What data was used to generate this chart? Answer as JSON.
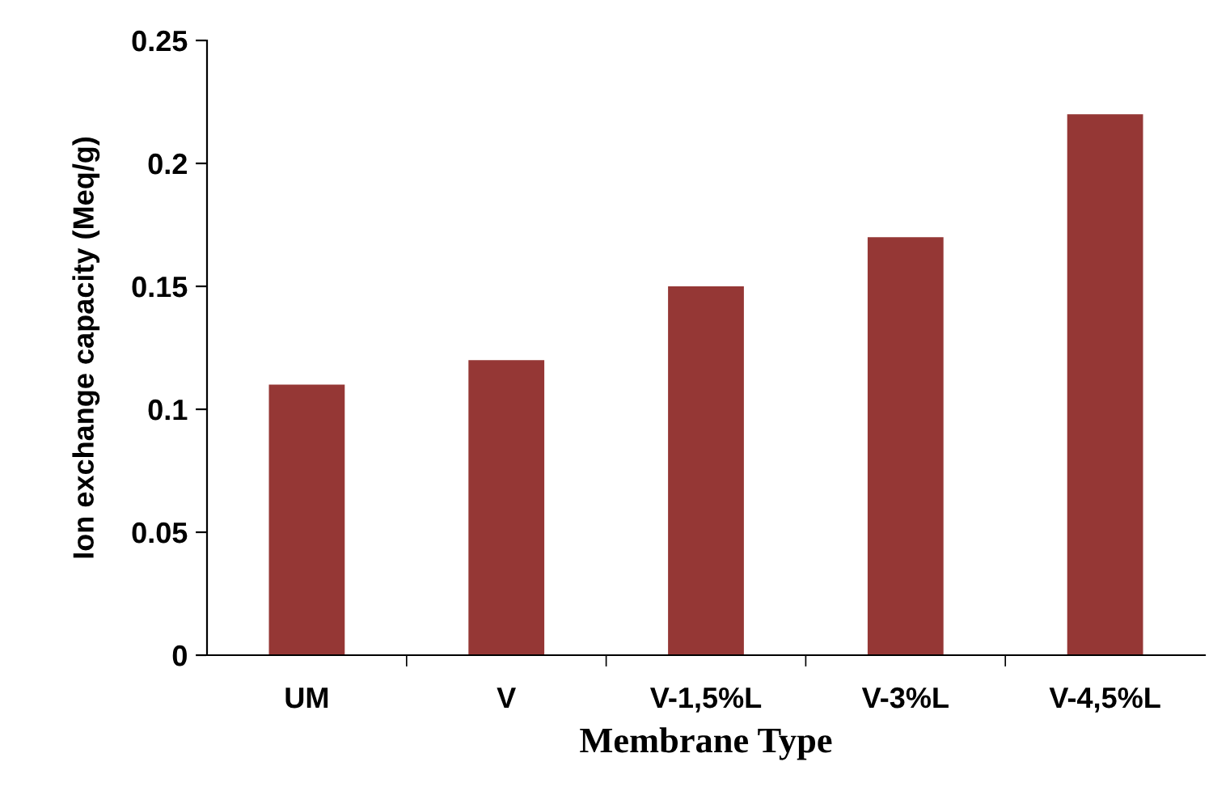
{
  "chart_data": {
    "type": "bar",
    "xlabel": "Membrane Type",
    "ylabel": "Ion exchange capacity (Meq/g)",
    "categories": [
      "UM",
      "V",
      "V-1,5%L",
      "V-3%L",
      "V-4,5%L"
    ],
    "values": [
      0.11,
      0.12,
      0.15,
      0.17,
      0.22
    ],
    "color": "#953735",
    "ylim": [
      0,
      0.25
    ],
    "yticks": [
      0,
      0.05,
      0.1,
      0.15,
      0.2,
      0.25
    ],
    "grid": false,
    "legend": false
  }
}
